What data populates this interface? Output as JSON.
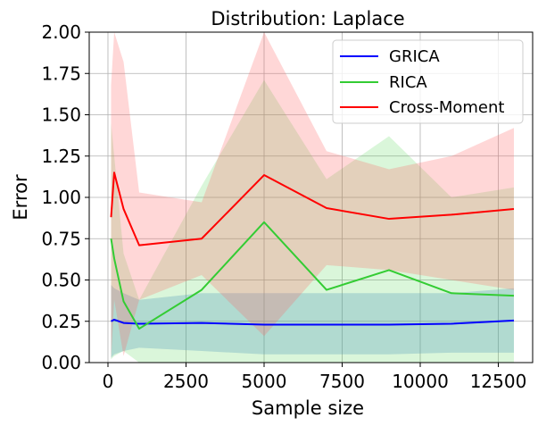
{
  "chart_data": {
    "type": "line",
    "title": "Distribution: Laplace",
    "xlabel": "Sample size",
    "ylabel": "Error",
    "xlim": [
      -600,
      13600
    ],
    "ylim": [
      0,
      2.0
    ],
    "xticks": [
      0,
      2500,
      5000,
      7500,
      10000,
      12500
    ],
    "xtick_labels": [
      "0",
      "2500",
      "5000",
      "7500",
      "10000",
      "12500"
    ],
    "yticks": [
      0,
      0.25,
      0.5,
      0.75,
      1.0,
      1.25,
      1.5,
      1.75,
      2.0
    ],
    "ytick_labels": [
      "0.00",
      "0.25",
      "0.50",
      "0.75",
      "1.00",
      "1.25",
      "1.50",
      "1.75",
      "2.00"
    ],
    "grid": true,
    "legend_position": "top-right",
    "series": [
      {
        "name": "GRICA",
        "color": "#0000ff",
        "band_color": "#5b8fd6",
        "band_opacity": 0.3,
        "x": [
          100,
          200,
          500,
          1000,
          3000,
          5000,
          7000,
          9000,
          11000,
          13000
        ],
        "values": [
          0.25,
          0.26,
          0.24,
          0.235,
          0.24,
          0.23,
          0.23,
          0.23,
          0.235,
          0.255
        ],
        "lower": [
          0.03,
          0.05,
          0.07,
          0.09,
          0.07,
          0.05,
          0.05,
          0.05,
          0.06,
          0.06
        ],
        "upper": [
          0.47,
          0.45,
          0.42,
          0.38,
          0.42,
          0.42,
          0.42,
          0.42,
          0.42,
          0.45
        ]
      },
      {
        "name": "RICA",
        "color": "#33cc33",
        "band_color": "#33cc33",
        "band_opacity": 0.18,
        "x": [
          100,
          200,
          500,
          1000,
          3000,
          5000,
          7000,
          9000,
          11000,
          13000
        ],
        "values": [
          0.75,
          0.63,
          0.37,
          0.205,
          0.44,
          0.85,
          0.44,
          0.56,
          0.42,
          0.405
        ],
        "lower": [
          0.02,
          0.04,
          0.07,
          0.0,
          0.0,
          0.0,
          0.0,
          0.0,
          0.0,
          0.0
        ],
        "upper": [
          1.45,
          1.25,
          0.66,
          0.38,
          1.07,
          1.71,
          1.11,
          1.37,
          1.0,
          1.06
        ]
      },
      {
        "name": "Cross-Moment",
        "color": "#ff0000",
        "band_color": "#ff6666",
        "band_opacity": 0.26,
        "x": [
          100,
          200,
          500,
          1000,
          3000,
          5000,
          7000,
          9000,
          11000,
          13000
        ],
        "values": [
          0.88,
          1.15,
          0.93,
          0.71,
          0.75,
          1.135,
          0.935,
          0.87,
          0.895,
          0.93
        ],
        "lower": [
          0.02,
          0.38,
          0.04,
          0.38,
          0.53,
          0.16,
          0.59,
          0.56,
          0.5,
          0.44
        ],
        "upper": [
          1.68,
          2.0,
          1.82,
          1.03,
          0.97,
          2.0,
          1.28,
          1.17,
          1.25,
          1.42
        ]
      }
    ]
  }
}
